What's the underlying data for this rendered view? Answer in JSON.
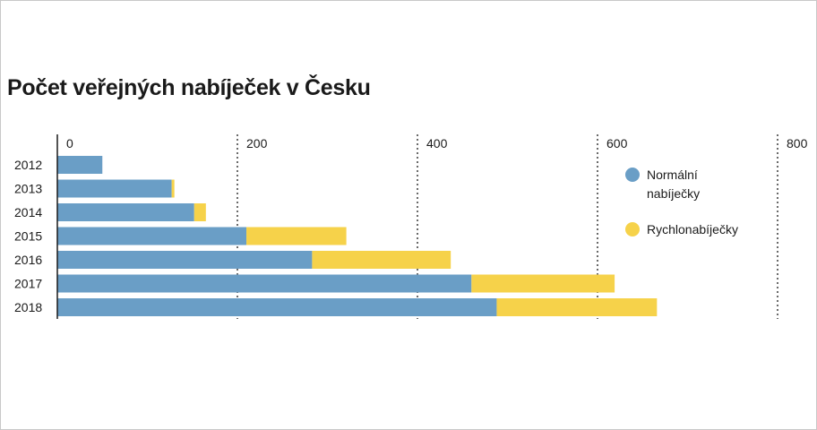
{
  "chart_data": {
    "type": "bar",
    "orientation": "horizontal",
    "stacked": true,
    "title": "Počet veřejných nabíječek v Česku",
    "xlabel": "",
    "ylabel": "",
    "xlim": [
      0,
      800
    ],
    "xticks": [
      "0",
      "200",
      "400",
      "600",
      "800"
    ],
    "categories": [
      "2012",
      "2013",
      "2014",
      "2015",
      "2016",
      "2017",
      "2018"
    ],
    "series": [
      {
        "name": "Normální nabíječky",
        "color": "#6a9ec6",
        "values": [
          50,
          127,
          152,
          210,
          283,
          460,
          488
        ]
      },
      {
        "name": "Rychlonabíječky",
        "color": "#f6d24a",
        "values": [
          0,
          3,
          13,
          111,
          154,
          159,
          178
        ]
      }
    ],
    "grid": "vertical dotted",
    "legend_position": "right"
  },
  "legend": {
    "normal_line1": "Normální",
    "normal_line2": "nabíječky",
    "fast": "Rychlonabíječky"
  }
}
